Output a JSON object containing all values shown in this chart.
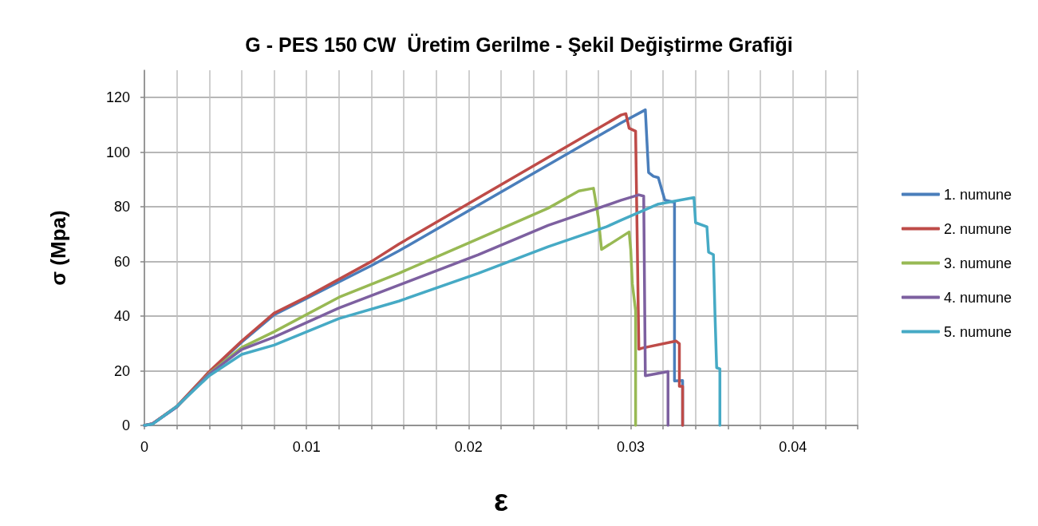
{
  "chart_data": {
    "type": "line",
    "title": "G - PES 150 CW  Üretim Gerilme - Şekil Değiştirme Grafiği",
    "xlabel": "ε",
    "ylabel": "σ (Mpa)",
    "xlim": [
      0,
      0.044
    ],
    "ylim": [
      0,
      130
    ],
    "xticks": [
      0,
      {
        "value": 0.002,
        "label": null
      },
      {
        "value": 0.004,
        "label": null
      },
      {
        "value": 0.006,
        "label": null
      },
      {
        "value": 0.008,
        "label": null
      },
      0.01,
      {
        "value": 0.012,
        "label": null
      },
      {
        "value": 0.014,
        "label": null
      },
      {
        "value": 0.016,
        "label": null
      },
      {
        "value": 0.018,
        "label": null
      },
      0.02,
      {
        "value": 0.022,
        "label": null
      },
      {
        "value": 0.024,
        "label": null
      },
      {
        "value": 0.026,
        "label": null
      },
      {
        "value": 0.028,
        "label": null
      },
      0.03,
      {
        "value": 0.032,
        "label": null
      },
      {
        "value": 0.034,
        "label": null
      },
      {
        "value": 0.036,
        "label": null
      },
      {
        "value": 0.038,
        "label": null
      },
      0.04,
      {
        "value": 0.042,
        "label": null
      },
      {
        "value": 0.044,
        "label": null
      }
    ],
    "yticks": [
      0,
      20,
      40,
      60,
      80,
      100,
      120
    ],
    "grid": true,
    "legend": "right",
    "marker": "none",
    "line_style": "solid",
    "series": [
      {
        "name": "1. numune",
        "color": "#4a7ebb",
        "x": [
          0,
          0.0005,
          0.002,
          0.004,
          0.006,
          0.008,
          0.01,
          0.012,
          0.014,
          0.0157,
          0.0294,
          0.0309,
          0.031,
          0.0311,
          0.0314,
          0.0317,
          0.0321,
          0.0326,
          0.0327,
          0.0327,
          0.0332,
          0.0332
        ],
        "values": [
          0,
          0.6,
          6.8,
          19.5,
          30.5,
          40.5,
          46.5,
          52.5,
          58.5,
          63.9,
          110.7,
          115.5,
          103.9,
          92.6,
          91.2,
          90.7,
          82.5,
          81.8,
          81.8,
          16.3,
          16.4,
          0
        ]
      },
      {
        "name": "2. numune",
        "color": "#be4b48",
        "x": [
          0,
          0.0005,
          0.002,
          0.004,
          0.006,
          0.008,
          0.01,
          0.012,
          0.014,
          0.0157,
          0.0294,
          0.0297,
          0.0299,
          0.0303,
          0.0305,
          0.0307,
          0.0328,
          0.033,
          0.033,
          0.0332,
          0.0332
        ],
        "values": [
          0,
          0.7,
          7.0,
          19.7,
          30.9,
          41.1,
          47,
          53.5,
          60.0,
          66.4,
          113.6,
          114.1,
          108.8,
          107.7,
          27.9,
          28.3,
          30.9,
          29.9,
          14.3,
          14.3,
          0
        ]
      },
      {
        "name": "3. numune",
        "color": "#98b954",
        "x": [
          0.002,
          0.004,
          0.006,
          0.008,
          0.012,
          0.0157,
          0.0206,
          0.0249,
          0.0268,
          0.0277,
          0.0278,
          0.028,
          0.0282,
          0.0299,
          0.03,
          0.0301,
          0.0303,
          0.0303
        ],
        "values": [
          6.8,
          19.0,
          28.5,
          34.3,
          46.9,
          55.7,
          68.3,
          79.5,
          85.8,
          86.8,
          83.4,
          76,
          64.4,
          70.8,
          64.4,
          51.8,
          42.0,
          0
        ]
      },
      {
        "name": "4. numune",
        "color": "#7d60a0",
        "x": [
          0,
          0.0005,
          0.002,
          0.004,
          0.006,
          0.008,
          0.012,
          0.0159,
          0.0206,
          0.0249,
          0.0294,
          0.0305,
          0.0308,
          0.0309,
          0.0323,
          0.0323
        ],
        "values": [
          0,
          0.6,
          6.8,
          18.8,
          27.8,
          32.3,
          43.0,
          51.8,
          62.5,
          73.2,
          82.4,
          84.4,
          83.9,
          18.2,
          19.7,
          0
        ]
      },
      {
        "name": "5. numune",
        "color": "#46aac5",
        "x": [
          0,
          0.0005,
          0.002,
          0.004,
          0.006,
          0.008,
          0.012,
          0.0157,
          0.0206,
          0.0249,
          0.0285,
          0.0294,
          0.0317,
          0.0339,
          0.034,
          0.0347,
          0.0348,
          0.0351,
          0.0352,
          0.0353,
          0.0355,
          0.0355
        ],
        "values": [
          0,
          0.5,
          7.0,
          18.2,
          26.0,
          29.4,
          39.1,
          45.5,
          55.7,
          65.4,
          72.7,
          75.1,
          81.0,
          83.4,
          74.2,
          72.7,
          63.4,
          62.5,
          40.1,
          21.1,
          20.7,
          0
        ]
      }
    ]
  }
}
